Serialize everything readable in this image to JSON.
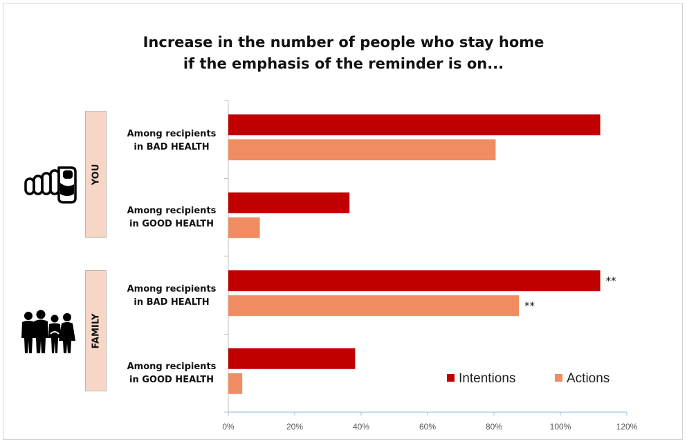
{
  "chart_data": {
    "type": "bar",
    "orientation": "horizontal",
    "title": [
      "Increase in the number of people who stay home",
      "if the emphasis of the reminder is on..."
    ],
    "groups": [
      {
        "name": "YOU",
        "icon": "pointing-hand-icon"
      },
      {
        "name": "FAMILY",
        "icon": "family-icon"
      }
    ],
    "categories": [
      {
        "group": "YOU",
        "label": [
          "Among recipients",
          "in BAD HEALTH"
        ]
      },
      {
        "group": "YOU",
        "label": [
          "Among recipients",
          "in GOOD HEALTH"
        ]
      },
      {
        "group": "FAMILY",
        "label": [
          "Among recipients",
          "in BAD HEALTH"
        ]
      },
      {
        "group": "FAMILY",
        "label": [
          "Among recipients",
          "in GOOD HEALTH"
        ]
      }
    ],
    "series": [
      {
        "name": "Intentions",
        "color": "#c00000",
        "values": [
          112,
          36.5,
          112,
          38.2
        ],
        "annotations": [
          "",
          "",
          "**",
          ""
        ]
      },
      {
        "name": "Actions",
        "color": "#f08c62",
        "values": [
          80.5,
          9.5,
          87.5,
          4.2
        ],
        "annotations": [
          "",
          "",
          "**",
          ""
        ]
      }
    ],
    "xlim": [
      0,
      120
    ],
    "xticks": [
      "0%",
      "20%",
      "40%",
      "60%",
      "80%",
      "100%",
      "120%"
    ],
    "legend_position": "bottom-right",
    "grid": false
  }
}
